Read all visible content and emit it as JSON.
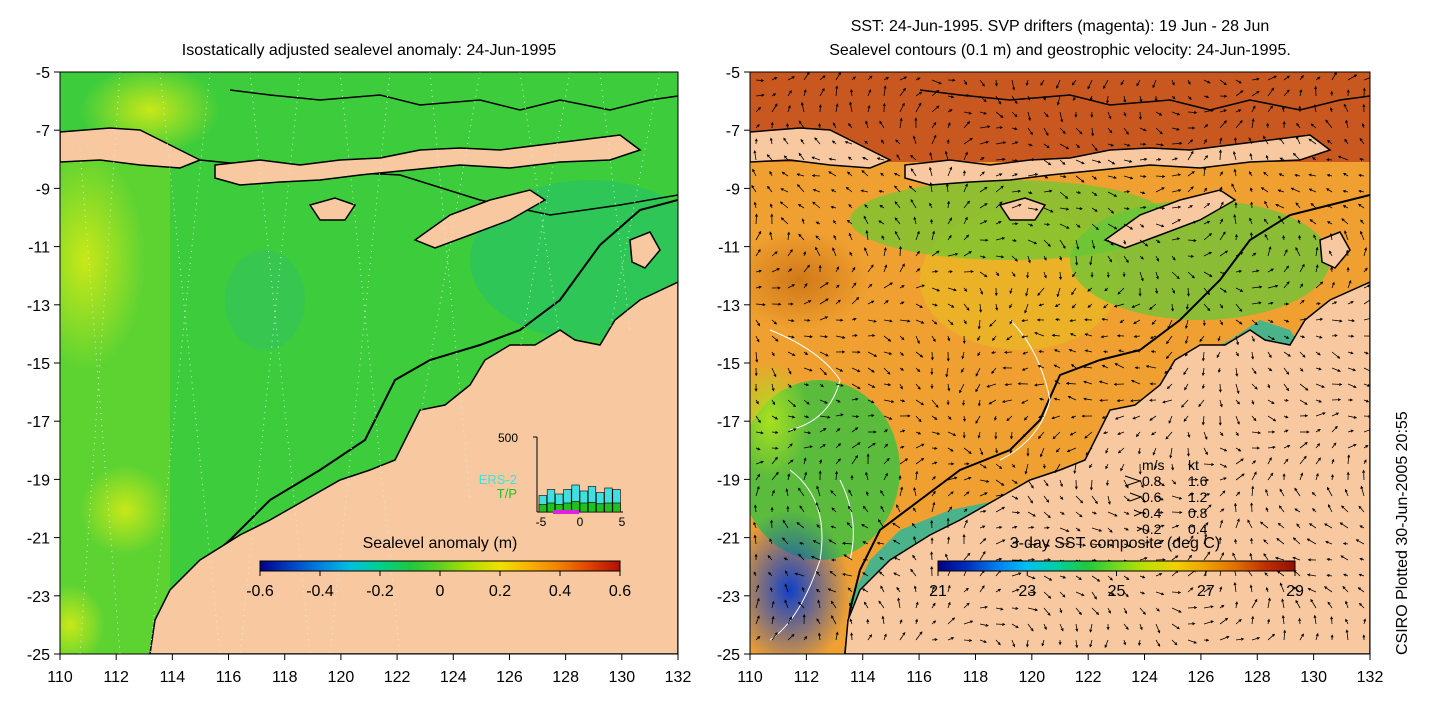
{
  "left_panel": {
    "title": "Isostatically adjusted sealevel anomaly: 24-Jun-1995",
    "colorbar": {
      "label": "Sealevel anomaly (m)",
      "ticks": [
        "-0.6",
        "-0.4",
        "-0.2",
        "0",
        "0.2",
        "0.4",
        "0.6"
      ],
      "colors": [
        "#00008b",
        "#0040c0",
        "#0080e0",
        "#00c0e0",
        "#00d090",
        "#20c840",
        "#60d020",
        "#b0e000",
        "#f0e000",
        "#f8b000",
        "#f08000",
        "#e04000",
        "#b01000"
      ]
    },
    "inset": {
      "y_tick": "500",
      "x_ticks": [
        "-5",
        "0",
        "5"
      ],
      "legend": [
        "ERS-2",
        "T/P"
      ],
      "legend_colors": [
        "#40e0e0",
        "#20c020"
      ],
      "ers2_heights": [
        0.22,
        0.3,
        0.24,
        0.3,
        0.36,
        0.28,
        0.34,
        0.26,
        0.32,
        0.3
      ],
      "tp_heights": [
        0.1,
        0.12,
        0.1,
        0.12,
        0.14,
        0.12,
        0.13,
        0.11,
        0.12,
        0.12
      ]
    },
    "colors": {
      "land": "#f8c8a0",
      "ocean": "#3ccc3c",
      "ocean_light": "#7ed82a",
      "ocean_teal": "#20c070"
    }
  },
  "right_panel": {
    "title_line1": "SST: 24-Jun-1995. SVP drifters (magenta): 19 Jun - 28 Jun",
    "title_line2": "Sealevel contours (0.1 m) and geostrophic velocity: 24-Jun-1995.",
    "colorbar": {
      "label": "3-day SST composite (deg C)",
      "ticks": [
        "21",
        "23",
        "25",
        "27",
        "29"
      ],
      "colors": [
        "#000080",
        "#0030c0",
        "#0080f0",
        "#00c0f0",
        "#00d0a0",
        "#20c840",
        "#70d820",
        "#c0e000",
        "#f0d000",
        "#f0a000",
        "#e07000",
        "#c03000",
        "#901000"
      ]
    },
    "velocity_legend": {
      "header_ms": "m/s",
      "header_kt": "kt",
      "rows": [
        {
          "ms": "0.8",
          "kt": "1.6"
        },
        {
          "ms": "0.6",
          "kt": "1.2"
        },
        {
          "ms": "0.4",
          "kt": "0.8"
        },
        {
          "ms": "0.2",
          "kt": "0.4"
        }
      ]
    },
    "colors": {
      "land": "#f8c8a0",
      "warm": "#f0a030",
      "hot": "#c84818",
      "cool": "#30c040",
      "cold": "#2060d0"
    }
  },
  "axes": {
    "y_ticks": [
      "-5",
      "-7",
      "-9",
      "-11",
      "-13",
      "-15",
      "-17",
      "-19",
      "-21",
      "-23",
      "-25"
    ],
    "x_ticks": [
      "110",
      "112",
      "114",
      "116",
      "118",
      "120",
      "122",
      "124",
      "126",
      "128",
      "130",
      "132"
    ],
    "lon_range": [
      110,
      132
    ],
    "lat_range": [
      -25,
      -5
    ]
  },
  "credit": "CSIRO Plotted 30-Jun-2005 20:55"
}
